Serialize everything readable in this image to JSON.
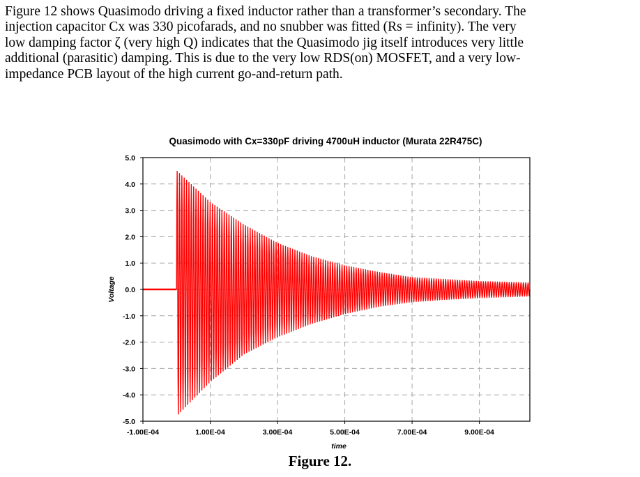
{
  "paragraph": {
    "lines": [
      "Figure 12 shows Quasimodo driving a fixed inductor rather than a transformer’s secondary.  The",
      "injection capacitor Cx was 330 picofarads, and no snubber was fitted (Rs = infinity).  The very",
      "low damping factor ζ (very high Q) indicates that the Quasimodo jig itself introduces very little",
      "additional (parasitic) damping.  This is due to the very low RDS(on) MOSFET, and a very low-",
      "impedance PCB layout of the high current go-and-return path."
    ]
  },
  "caption": "Figure 12.",
  "chart_data": {
    "type": "line",
    "title": "Quasimodo with Cx=330pF  driving 4700uH inductor (Murata 22R475C)",
    "xlabel": "time",
    "ylabel": "Voltage",
    "xlim": [
      -0.0001,
      0.00105
    ],
    "ylim": [
      -5.0,
      5.0
    ],
    "x_ticks": [
      -0.0001,
      0.0001,
      0.0003,
      0.0005,
      0.0007,
      0.0009
    ],
    "x_tick_labels": [
      "-1.00E-04",
      "1.00E-04",
      "3.00E-04",
      "5.00E-04",
      "7.00E-04",
      "9.00E-04"
    ],
    "y_ticks": [
      5.0,
      4.0,
      3.0,
      2.0,
      1.0,
      0.0,
      -1.0,
      -2.0,
      -3.0,
      -4.0,
      -5.0
    ],
    "y_tick_labels": [
      "5.0",
      "4.0",
      "3.0",
      "2.0",
      "1.0",
      "0.0",
      "-1.0",
      "-2.0",
      "-3.0",
      "-4.0",
      "-5.0"
    ],
    "grid": true,
    "series": [
      {
        "color": "#ff0000",
        "onset_x": 0.0,
        "oscillation_cycles": 150,
        "envelope": {
          "x": [
            0.0,
            0.0001,
            0.0002,
            0.0003,
            0.0004,
            0.0005,
            0.0006,
            0.0007,
            0.0008,
            0.0009,
            0.00105
          ],
          "upper": [
            4.5,
            3.3,
            2.45,
            1.75,
            1.25,
            0.9,
            0.65,
            0.45,
            0.38,
            0.3,
            0.25
          ],
          "lower": [
            -4.8,
            -3.5,
            -2.45,
            -1.8,
            -1.3,
            -0.92,
            -0.65,
            -0.47,
            -0.38,
            -0.32,
            -0.25
          ]
        },
        "pre_onset_level": 0.0
      }
    ]
  }
}
